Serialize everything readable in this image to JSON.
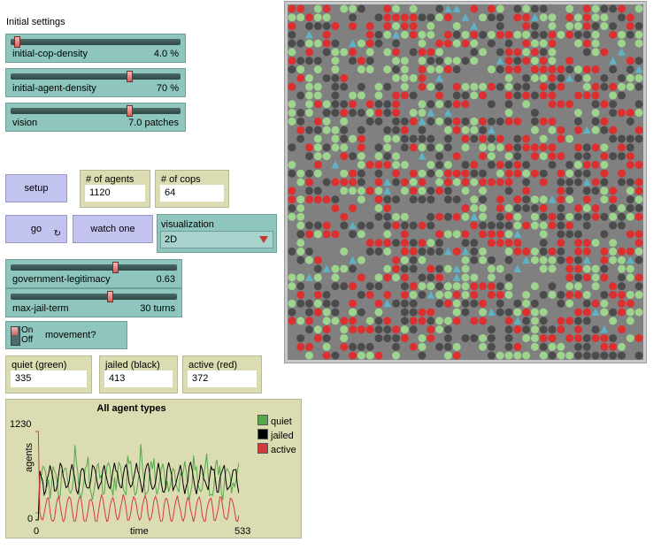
{
  "section_label": "Initial settings",
  "sliders": [
    {
      "name": "initial-cop-density",
      "value": "4.0 %",
      "fraction": 0.04
    },
    {
      "name": "initial-agent-density",
      "value": "70 %",
      "fraction": 0.7
    },
    {
      "name": "vision",
      "value": "7.0 patches",
      "fraction": 0.7
    },
    {
      "name": "government-legitimacy",
      "value": "0.63",
      "fraction": 0.63
    },
    {
      "name": "max-jail-term",
      "value": "30 turns",
      "fraction": 0.6
    }
  ],
  "buttons": {
    "setup": "setup",
    "go": "go",
    "watch_one": "watch one",
    "loop_glyph": "↻"
  },
  "monitors": {
    "agents": {
      "label": "# of agents",
      "value": "1120"
    },
    "cops": {
      "label": "# of cops",
      "value": "64"
    },
    "quiet": {
      "label": "quiet (green)",
      "value": "335"
    },
    "jailed": {
      "label": "jailed (black)",
      "value": "413"
    },
    "active": {
      "label": "active (red)",
      "value": "372"
    }
  },
  "chooser": {
    "label": "visualization",
    "value": "2D"
  },
  "switch": {
    "name": "movement?",
    "on": "On",
    "off": "Off",
    "state": "on"
  },
  "plot": {
    "title": "All agent types",
    "ylabel": "agents",
    "xlabel": "time",
    "ymax": "1230",
    "ymin": "0",
    "xmin": "0",
    "xmax": "533",
    "legend": [
      {
        "name": "quiet",
        "color": "#54a84a"
      },
      {
        "name": "jailed",
        "color": "#000000"
      },
      {
        "name": "active",
        "color": "#d23b3b"
      }
    ]
  },
  "colors": {
    "quiet": "#9ed48e",
    "jailed": "#4b4b4b",
    "active": "#dc2f2f",
    "cop": "#5eb4c6",
    "bg": "#808080"
  }
}
